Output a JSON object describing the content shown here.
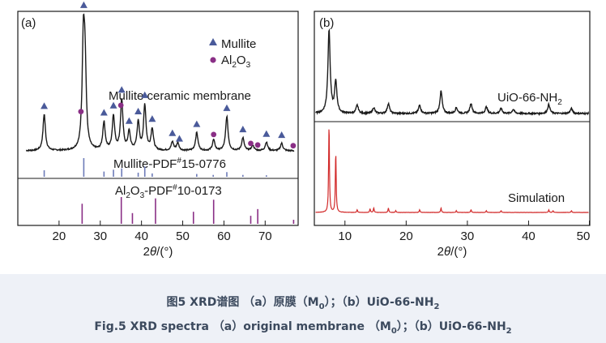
{
  "caption": {
    "cn_prefix": "图5 XRD谱图 （a）原膜（M",
    "cn_sub0": "0",
    "cn_mid": "）；（b）UiO-66-NH",
    "cn_sub2": "2",
    "en_prefix": "Fig.5 XRD spectra （a）original membrane （M",
    "en_sub0": "0",
    "en_mid": "）；（b）UiO-66-NH",
    "en_sub2": "2"
  },
  "colors": {
    "trace": "#1a1a1a",
    "mullite_marker": "#4a5a9a",
    "alumina_marker": "#8a2f86",
    "mullite_ref": "#6d7bb8",
    "alumina_ref": "#8a2f86",
    "simulation": "#d22a2a"
  },
  "chart_data": [
    {
      "type": "line",
      "panel": "a",
      "panel_label": "(a)",
      "xlabel": "2θ/(°)",
      "x_axis_label_parts": [
        "2",
        "θ",
        "/(°)"
      ],
      "xlim": [
        10,
        78
      ],
      "xticks": [
        20,
        30,
        40,
        50,
        60,
        70
      ],
      "legend": {
        "placement": "top-right",
        "entries": [
          {
            "marker": "triangle",
            "name": "Mullite"
          },
          {
            "marker": "circle",
            "name": "Al2O3",
            "name_parts": [
              "Al",
              "2",
              "O",
              "3"
            ]
          }
        ]
      },
      "series": [
        {
          "name": "Mullite ceramic membrane",
          "peaks": [
            {
              "x": 16.4,
              "h": 0.34
            },
            {
              "x": 25.9,
              "h": 0.95
            },
            {
              "x": 26.3,
              "h": 0.7
            },
            {
              "x": 30.9,
              "h": 0.26
            },
            {
              "x": 33.2,
              "h": 0.32
            },
            {
              "x": 35.2,
              "h": 0.47
            },
            {
              "x": 37.0,
              "h": 0.17
            },
            {
              "x": 39.2,
              "h": 0.26
            },
            {
              "x": 40.8,
              "h": 0.42
            },
            {
              "x": 42.6,
              "h": 0.2
            },
            {
              "x": 47.5,
              "h": 0.08
            },
            {
              "x": 48.8,
              "h": 0.07
            },
            {
              "x": 53.4,
              "h": 0.17
            },
            {
              "x": 57.5,
              "h": 0.1
            },
            {
              "x": 60.7,
              "h": 0.32
            },
            {
              "x": 64.6,
              "h": 0.12
            },
            {
              "x": 67.0,
              "h": 0.05
            },
            {
              "x": 70.3,
              "h": 0.08
            },
            {
              "x": 74.0,
              "h": 0.07
            }
          ],
          "mullite_markers": [
            16.4,
            26.0,
            30.9,
            33.2,
            35.2,
            37.0,
            39.2,
            40.8,
            42.6,
            47.5,
            49.2,
            53.4,
            60.7,
            64.6,
            70.3,
            74.0
          ],
          "alumina_markers": [
            25.3,
            35.0,
            57.5,
            66.5,
            68.2,
            76.8
          ]
        },
        {
          "name": "Mullite-PDF#15-0776",
          "name_parts": [
            "Mullite-PDF",
            "#",
            "15-0776"
          ],
          "type": "reference",
          "sticks": [
            {
              "x": 16.4,
              "h": 0.35
            },
            {
              "x": 26.0,
              "h": 1.0
            },
            {
              "x": 30.9,
              "h": 0.28
            },
            {
              "x": 33.2,
              "h": 0.38
            },
            {
              "x": 35.2,
              "h": 0.45
            },
            {
              "x": 39.2,
              "h": 0.22
            },
            {
              "x": 40.8,
              "h": 0.55
            },
            {
              "x": 42.6,
              "h": 0.18
            },
            {
              "x": 53.4,
              "h": 0.15
            },
            {
              "x": 57.4,
              "h": 0.1
            },
            {
              "x": 60.7,
              "h": 0.25
            },
            {
              "x": 64.6,
              "h": 0.1
            },
            {
              "x": 70.3,
              "h": 0.08
            }
          ]
        },
        {
          "name": "Al2O3-PDF#10-0173",
          "name_parts": [
            "Al",
            "2",
            "O",
            "3",
            "-PDF",
            "#",
            "10-0173"
          ],
          "type": "reference",
          "sticks": [
            {
              "x": 25.6,
              "h": 0.75
            },
            {
              "x": 35.1,
              "h": 1.0
            },
            {
              "x": 37.8,
              "h": 0.4
            },
            {
              "x": 43.4,
              "h": 0.95
            },
            {
              "x": 52.6,
              "h": 0.45
            },
            {
              "x": 57.5,
              "h": 0.9
            },
            {
              "x": 66.5,
              "h": 0.3
            },
            {
              "x": 68.2,
              "h": 0.55
            },
            {
              "x": 76.9,
              "h": 0.15
            }
          ]
        }
      ]
    },
    {
      "type": "line",
      "panel": "b",
      "panel_label": "(b)",
      "xlabel": "2θ/(°)",
      "x_axis_label_parts": [
        "2",
        "θ",
        "/(°)"
      ],
      "xlim": [
        5,
        50
      ],
      "xticks": [
        10,
        20,
        30,
        40,
        50
      ],
      "series": [
        {
          "name": "UiO-66-NH2",
          "name_parts": [
            "UiO-66-NH",
            "2"
          ],
          "peaks": [
            {
              "x": 7.4,
              "h": 1.0
            },
            {
              "x": 8.5,
              "h": 0.38
            },
            {
              "x": 12.0,
              "h": 0.1
            },
            {
              "x": 14.7,
              "h": 0.07
            },
            {
              "x": 17.1,
              "h": 0.12
            },
            {
              "x": 22.2,
              "h": 0.1
            },
            {
              "x": 25.7,
              "h": 0.27
            },
            {
              "x": 28.2,
              "h": 0.07
            },
            {
              "x": 30.6,
              "h": 0.12
            },
            {
              "x": 33.1,
              "h": 0.08
            },
            {
              "x": 35.5,
              "h": 0.06
            },
            {
              "x": 37.5,
              "h": 0.05
            },
            {
              "x": 43.3,
              "h": 0.11
            },
            {
              "x": 47.0,
              "h": 0.06
            }
          ]
        },
        {
          "name": "Simulation",
          "peaks": [
            {
              "x": 7.4,
              "h": 1.0
            },
            {
              "x": 8.5,
              "h": 0.68
            },
            {
              "x": 12.0,
              "h": 0.03
            },
            {
              "x": 14.1,
              "h": 0.04
            },
            {
              "x": 14.7,
              "h": 0.05
            },
            {
              "x": 17.1,
              "h": 0.05
            },
            {
              "x": 18.3,
              "h": 0.02
            },
            {
              "x": 22.2,
              "h": 0.03
            },
            {
              "x": 25.7,
              "h": 0.05
            },
            {
              "x": 28.2,
              "h": 0.02
            },
            {
              "x": 30.6,
              "h": 0.03
            },
            {
              "x": 33.1,
              "h": 0.02
            },
            {
              "x": 35.5,
              "h": 0.02
            },
            {
              "x": 43.3,
              "h": 0.03
            },
            {
              "x": 44.0,
              "h": 0.02
            },
            {
              "x": 47.0,
              "h": 0.02
            }
          ]
        }
      ]
    }
  ]
}
